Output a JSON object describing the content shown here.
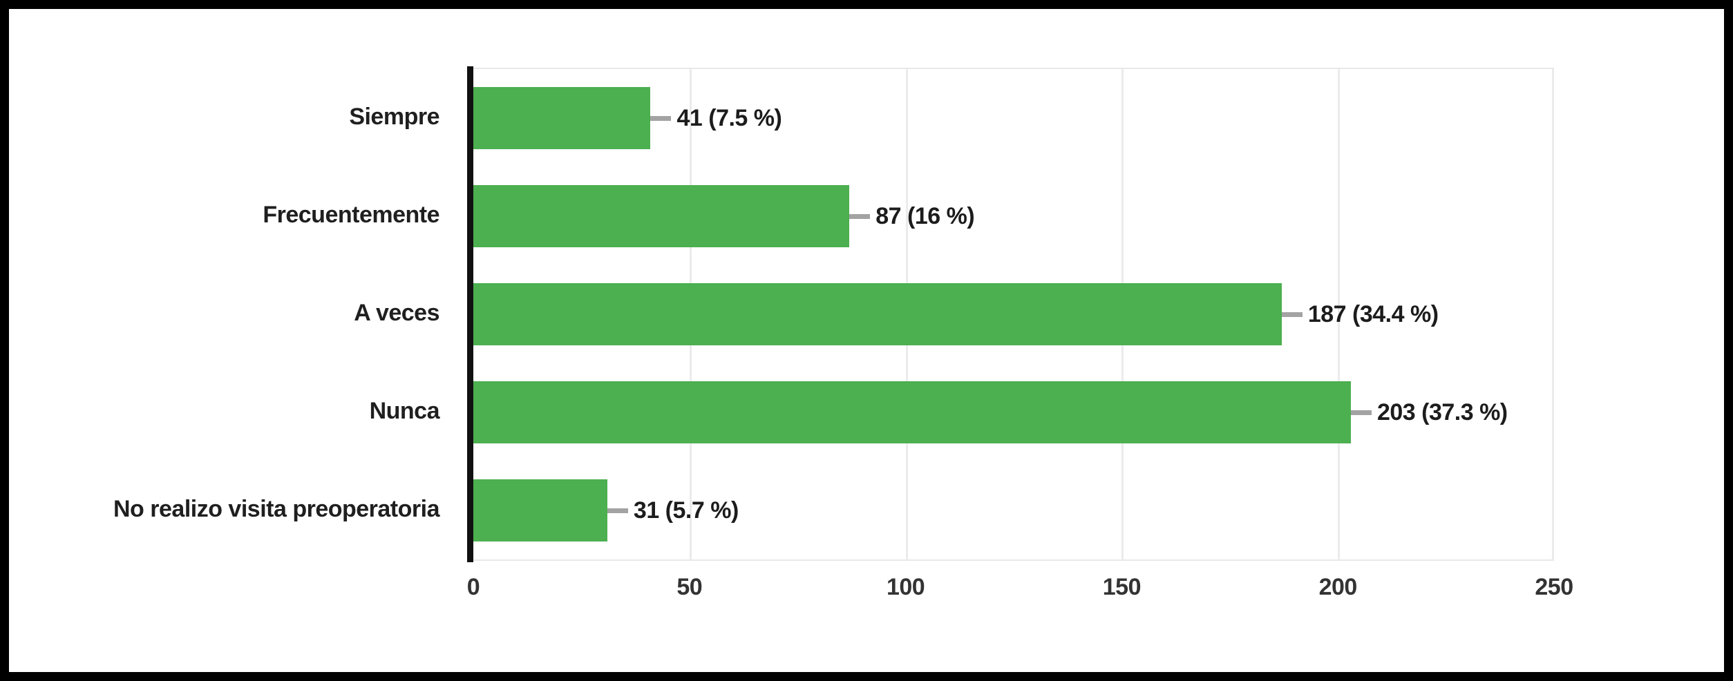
{
  "colors": {
    "bar": "#4caf50",
    "axis": "#111111",
    "gridline": "#ebebeb",
    "connector": "#a3a3a3",
    "label_text": "#1f1f1f",
    "frame_border": "#000000",
    "background": "#ffffff"
  },
  "chart_data": {
    "type": "bar",
    "orientation": "horizontal",
    "title": "",
    "xlabel": "",
    "ylabel": "",
    "xlim": [
      0,
      250
    ],
    "grid": true,
    "categories": [
      "Siempre",
      "Frecuentemente",
      "A veces",
      "Nunca",
      "No realizo visita preoperatoria"
    ],
    "values": [
      41,
      87,
      187,
      203,
      31
    ],
    "annotations": [
      "41 (7.5 %)",
      "87 (16 %)",
      "187 (34.4 %)",
      "203 (37.3 %)",
      "31 (5.7 %)"
    ],
    "x_ticks": [
      "0",
      "50",
      "100",
      "150",
      "200",
      "250"
    ],
    "rows": [
      {
        "category": "Siempre",
        "value": 41,
        "annotation": "41 (7.5 %)"
      },
      {
        "category": "Frecuentemente",
        "value": 87,
        "annotation": "87 (16 %)"
      },
      {
        "category": "A veces",
        "value": 187,
        "annotation": "187 (34.4 %)"
      },
      {
        "category": "Nunca",
        "value": 203,
        "annotation": "203 (37.3 %)"
      },
      {
        "category": "No realizo visita preoperatoria",
        "value": 31,
        "annotation": "31 (5.7 %)"
      }
    ]
  }
}
